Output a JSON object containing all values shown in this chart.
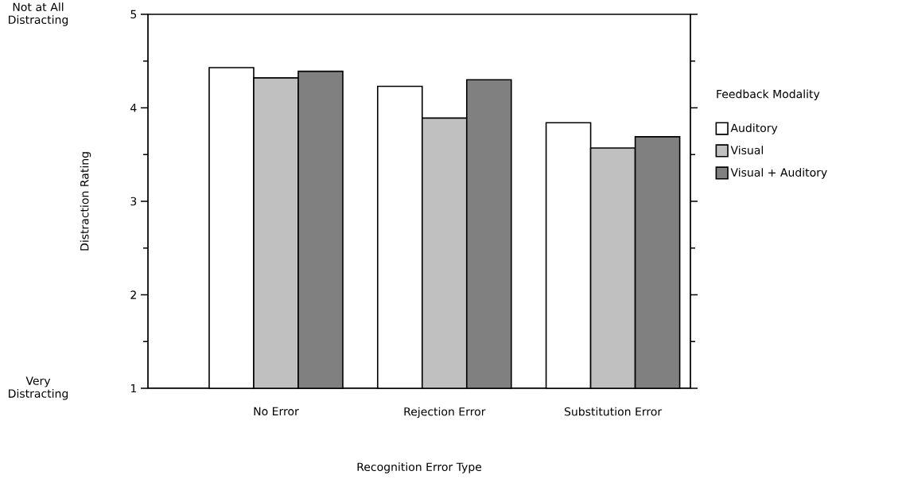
{
  "chart_data": {
    "type": "bar",
    "xlabel": "Recognition Error Type",
    "ylabel": "Distraction Rating",
    "legend_title": "Feedback Modality",
    "categories": [
      "No Error",
      "Rejection Error",
      "Substitution Error"
    ],
    "series": [
      {
        "name": "Auditory",
        "color": "#ffffff",
        "values": [
          4.43,
          4.23,
          3.84
        ]
      },
      {
        "name": "Visual",
        "color": "#c0c0c0",
        "values": [
          4.32,
          3.89,
          3.57
        ]
      },
      {
        "name": "Visual + Auditory",
        "color": "#808080",
        "values": [
          4.39,
          4.3,
          3.69
        ]
      }
    ],
    "ylim": [
      1,
      5
    ],
    "yticks": [
      1,
      2,
      3,
      4,
      5
    ],
    "annotations": [
      "Not at All Distracting",
      "Very Distracting"
    ],
    "legend": "right",
    "grid": false
  }
}
